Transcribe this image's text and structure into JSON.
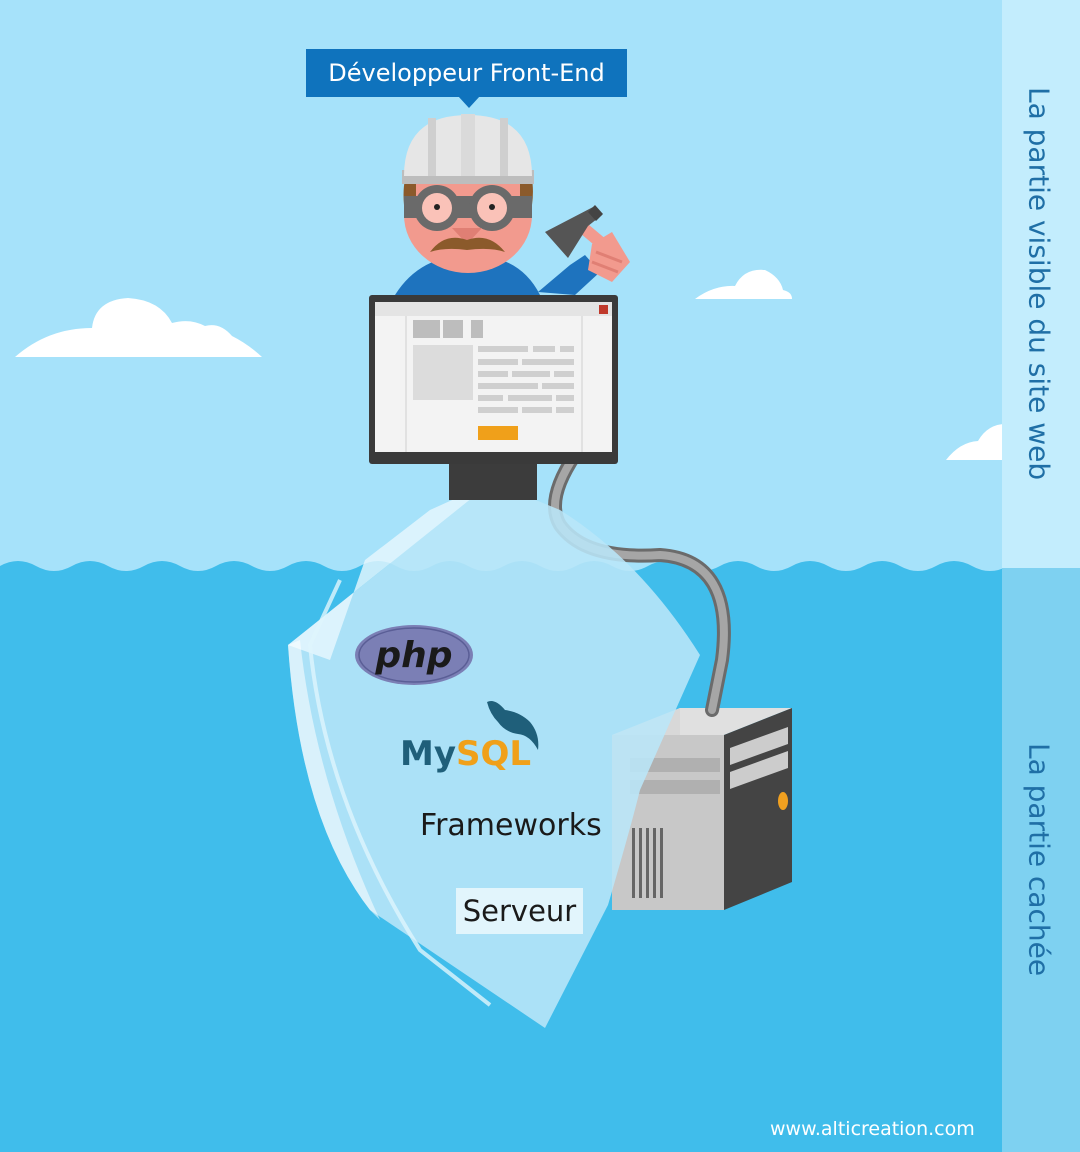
{
  "role_label": "Développeur Front-End",
  "sections": {
    "visible": "La partie visible du site web",
    "hidden": "La partie cachée"
  },
  "iceberg": {
    "php_logo": "php",
    "mysql_logo": "MySQL",
    "frameworks": "Frameworks",
    "server": "Serveur"
  },
  "footer": {
    "credit": "www.alticreation.com"
  },
  "colors": {
    "sky": "#a6e2fa",
    "water": "#40bdeb",
    "side_panel_top": "#c3edfd",
    "side_panel_bottom": "#7ed1f1",
    "tooltip": "#0f73bd",
    "iceberg": "#b9e6f8"
  }
}
